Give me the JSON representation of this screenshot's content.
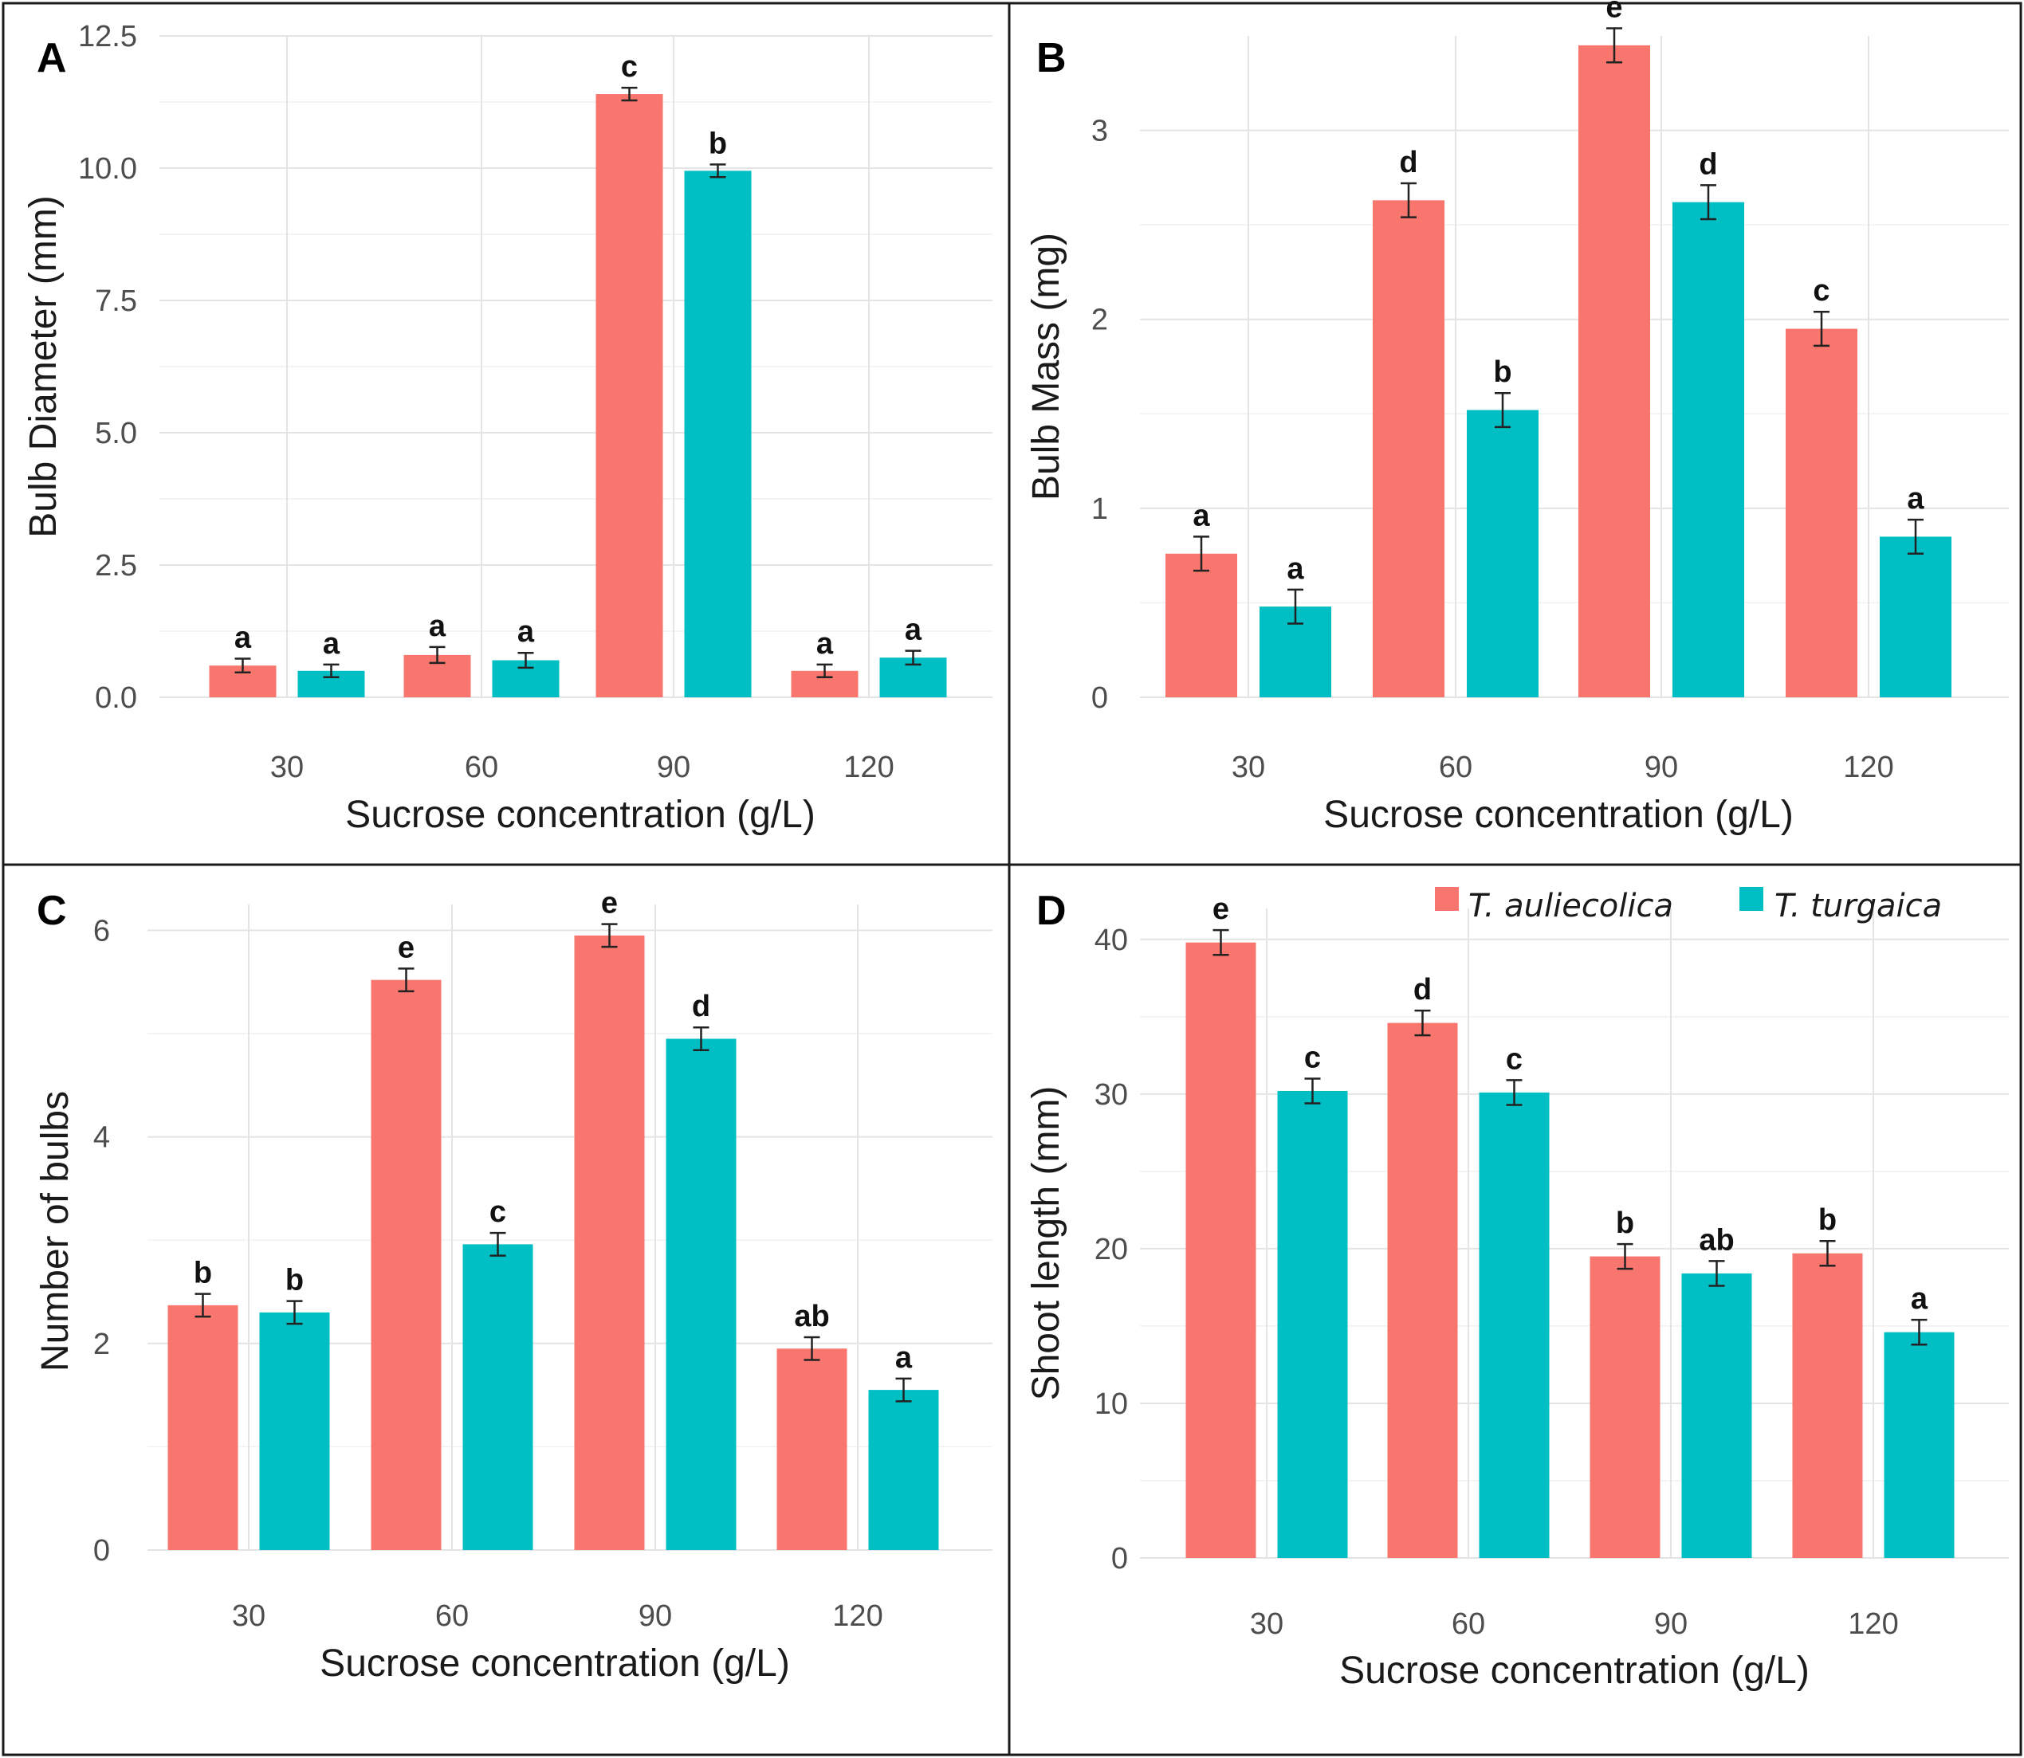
{
  "colors": {
    "s0": "#f8766d",
    "s1": "#00bfc4"
  },
  "legend": {
    "items": [
      "T. auliecolica",
      "T. turgaica"
    ]
  },
  "chart_data": [
    {
      "id": "A",
      "letter": "A",
      "type": "bar",
      "xlabel": "Sucrose concentration (g/L)",
      "ylabel": "Bulb Diameter (mm)",
      "categories": [
        "30",
        "60",
        "90",
        "120"
      ],
      "ylim": [
        0,
        12.5
      ],
      "yticks": [
        0,
        2.5,
        5,
        7.5,
        10,
        12.5
      ],
      "ytick_labels": [
        "0.0",
        "2.5",
        "5.0",
        "7.5",
        "10.0",
        "12.5"
      ],
      "series": [
        {
          "name": "T. auliecolica",
          "values": [
            0.6,
            0.8,
            11.4,
            0.5
          ],
          "errors": [
            0.13,
            0.15,
            0.12,
            0.12
          ],
          "sig": [
            "a",
            "a",
            "c",
            "a"
          ]
        },
        {
          "name": "T. turgaica",
          "values": [
            0.5,
            0.7,
            9.95,
            0.75
          ],
          "errors": [
            0.12,
            0.14,
            0.12,
            0.13
          ],
          "sig": [
            "a",
            "a",
            "b",
            "a"
          ]
        }
      ]
    },
    {
      "id": "B",
      "letter": "B",
      "type": "bar",
      "xlabel": "Sucrose concentration (g/L)",
      "ylabel": "Bulb Mass (mg)",
      "categories": [
        "30",
        "60",
        "90",
        "120"
      ],
      "ylim": [
        0,
        3.5
      ],
      "yticks": [
        0,
        1,
        2,
        3
      ],
      "ytick_labels": [
        "0",
        "1",
        "2",
        "3"
      ],
      "series": [
        {
          "name": "T. auliecolica",
          "values": [
            0.76,
            2.63,
            3.45,
            1.95
          ],
          "errors": [
            0.09,
            0.09,
            0.09,
            0.09
          ],
          "sig": [
            "a",
            "d",
            "e",
            "c"
          ]
        },
        {
          "name": "T. turgaica",
          "values": [
            0.48,
            1.52,
            2.62,
            0.85
          ],
          "errors": [
            0.09,
            0.09,
            0.09,
            0.09
          ],
          "sig": [
            "a",
            "b",
            "d",
            "a"
          ]
        }
      ]
    },
    {
      "id": "C",
      "letter": "C",
      "type": "bar",
      "xlabel": "Sucrose concentration (g/L)",
      "ylabel": "Number of bulbs",
      "categories": [
        "30",
        "60",
        "90",
        "120"
      ],
      "ylim": [
        0,
        6.25
      ],
      "yticks": [
        0,
        2,
        4,
        6
      ],
      "ytick_labels": [
        "0",
        "2",
        "4",
        "6"
      ],
      "series": [
        {
          "name": "T. auliecolica",
          "values": [
            2.37,
            5.52,
            5.95,
            1.95
          ],
          "errors": [
            0.11,
            0.11,
            0.11,
            0.11
          ],
          "sig": [
            "b",
            "e",
            "e",
            "ab"
          ]
        },
        {
          "name": "T. turgaica",
          "values": [
            2.3,
            2.96,
            4.95,
            1.55
          ],
          "errors": [
            0.11,
            0.11,
            0.11,
            0.11
          ],
          "sig": [
            "b",
            "c",
            "d",
            "a"
          ]
        }
      ]
    },
    {
      "id": "D",
      "letter": "D",
      "type": "bar",
      "xlabel": "Sucrose concentration (g/L)",
      "ylabel": "Shoot length (mm)",
      "categories": [
        "30",
        "60",
        "90",
        "120"
      ],
      "ylim": [
        0,
        42
      ],
      "yticks": [
        0,
        10,
        20,
        30,
        40
      ],
      "ytick_labels": [
        "0",
        "10",
        "20",
        "30",
        "40"
      ],
      "series": [
        {
          "name": "T. auliecolica",
          "values": [
            39.8,
            34.6,
            19.5,
            19.7
          ],
          "errors": [
            0.8,
            0.8,
            0.8,
            0.8
          ],
          "sig": [
            "e",
            "d",
            "b",
            "b"
          ]
        },
        {
          "name": "T. turgaica",
          "values": [
            30.2,
            30.1,
            18.4,
            14.6
          ],
          "errors": [
            0.8,
            0.8,
            0.8,
            0.8
          ],
          "sig": [
            "c",
            "c",
            "ab",
            "a"
          ]
        }
      ]
    }
  ]
}
